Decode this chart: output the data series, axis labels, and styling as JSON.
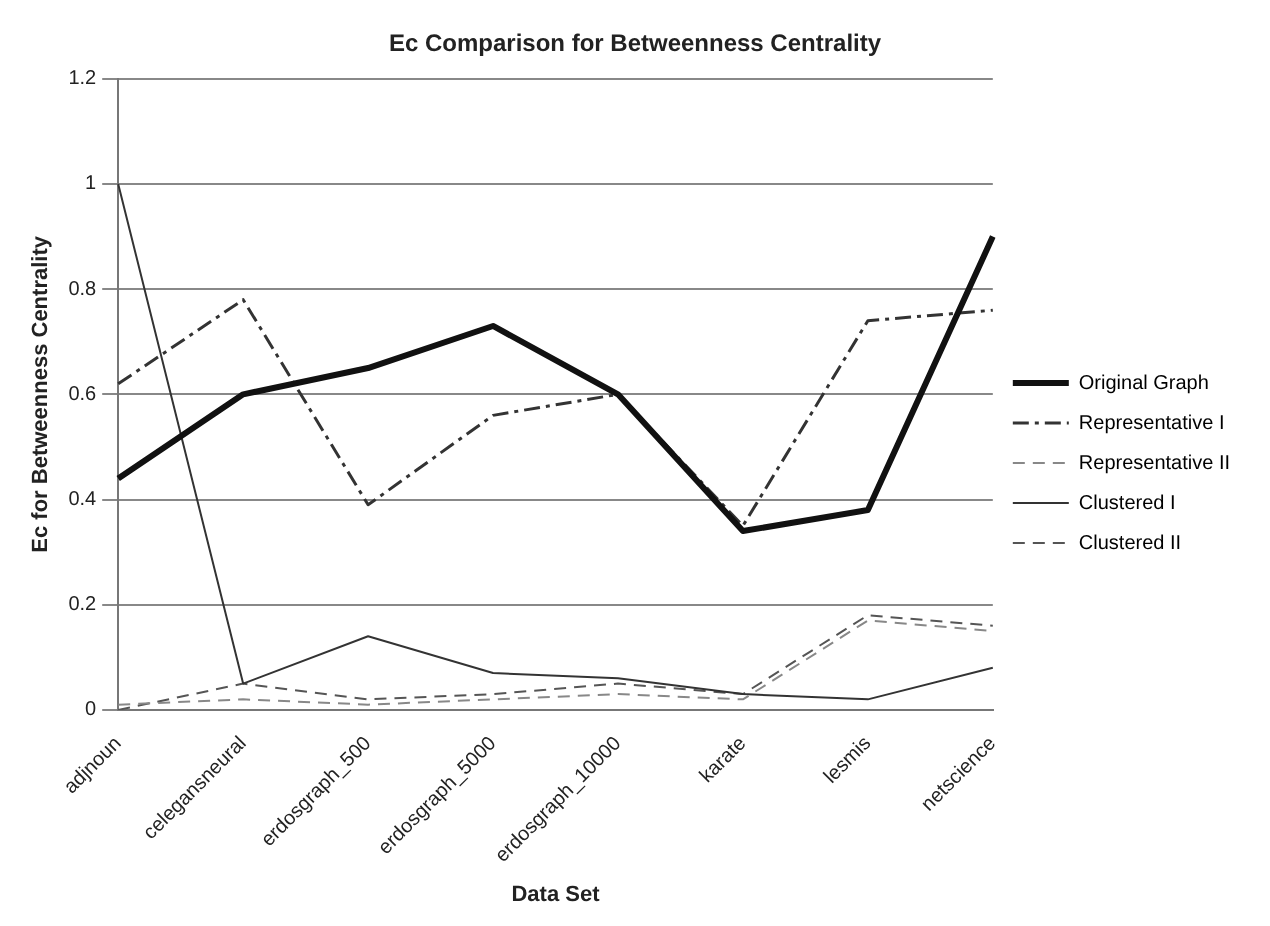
{
  "chart_data": {
    "type": "line",
    "title": "Ec Comparison for Betweenness Centrality",
    "xlabel": "Data Set",
    "ylabel": "Ec for Betweenness Centrality",
    "categories": [
      "adjnoun",
      "celegansneural",
      "erdosgraph_500",
      "erdosgraph_5000",
      "erdosgraph_10000",
      "karate",
      "lesmis",
      "netscience"
    ],
    "series": [
      {
        "name": "Original Graph",
        "color": "#111111",
        "line_style": "solid",
        "values": [
          0.44,
          0.6,
          0.65,
          0.73,
          0.6,
          0.34,
          0.38,
          0.9
        ]
      },
      {
        "name": "Representative I",
        "color": "#333333",
        "line_style": "dashdot",
        "values": [
          0.62,
          0.78,
          0.39,
          0.56,
          0.6,
          0.35,
          0.74,
          0.76
        ]
      },
      {
        "name": "Representative II",
        "color": "#888888",
        "line_style": "dashed",
        "values": [
          0.01,
          0.02,
          0.01,
          0.02,
          0.03,
          0.02,
          0.17,
          0.15
        ]
      },
      {
        "name": "Clustered I",
        "color": "#333333",
        "line_style": "solid",
        "values": [
          1.0,
          0.05,
          0.14,
          0.07,
          0.06,
          0.03,
          0.02,
          0.08
        ]
      },
      {
        "name": "Clustered II",
        "color": "#555555",
        "line_style": "dashed",
        "values": [
          0.0,
          0.05,
          0.02,
          0.03,
          0.05,
          0.03,
          0.18,
          0.16
        ]
      }
    ],
    "ylim": [
      0,
      1.2
    ],
    "yticks": [
      0,
      0.2,
      0.4,
      0.6,
      0.8,
      1,
      1.2
    ],
    "grid": "y",
    "legend": "right",
    "marker": "none"
  }
}
